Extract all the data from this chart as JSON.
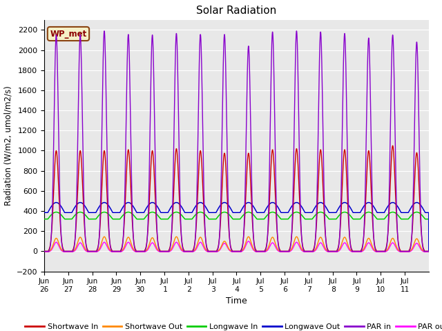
{
  "title": "Solar Radiation",
  "xlabel": "Time",
  "ylabel": "Radiation (W/m2, umol/m2/s)",
  "ylim": [
    -200,
    2300
  ],
  "yticks": [
    -200,
    0,
    200,
    400,
    600,
    800,
    1000,
    1200,
    1400,
    1600,
    1800,
    2000,
    2200
  ],
  "bg_color": "#e8e8e8",
  "grid_color": "white",
  "annotation_text": "WP_met",
  "annotation_bg": "#f5f0c8",
  "annotation_border": "#8B4513",
  "series": {
    "shortwave_in": {
      "color": "#cc0000",
      "label": "Shortwave In"
    },
    "shortwave_out": {
      "color": "#ff8800",
      "label": "Shortwave Out"
    },
    "longwave_in": {
      "color": "#00cc00",
      "label": "Longwave In"
    },
    "longwave_out": {
      "color": "#0000cc",
      "label": "Longwave Out"
    },
    "par_in": {
      "color": "#8800cc",
      "label": "PAR in"
    },
    "par_out": {
      "color": "#ff00ff",
      "label": "PAR out"
    }
  },
  "x_tick_labels": [
    "Jun\n26",
    "Jun\n27",
    "Jun\n28",
    "Jun\n29",
    "Jun\n30",
    "Jul\n 1",
    "Jul\n 2",
    "Jul\n 3",
    "Jul\n 4",
    "Jul\n 5",
    "Jul\n 6",
    "Jul\n 7",
    "Jul\n 8",
    "Jul\n 9",
    "Jul\n10",
    "Jul\n11"
  ],
  "n_days": 16
}
